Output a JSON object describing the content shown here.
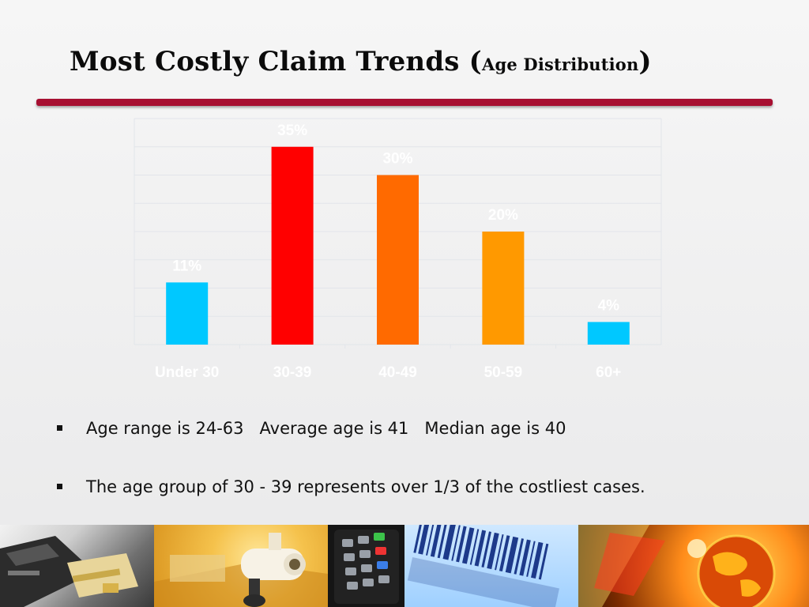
{
  "title": {
    "main": "Most Costly Claim Trends (",
    "sub": "Age Distribution",
    "close": ")"
  },
  "colors": {
    "accent_rule": "#a70f31",
    "label_text": "#ffffff",
    "grid": "#e2e5ea"
  },
  "chart_data": {
    "type": "bar",
    "categories": [
      "Under 30",
      "30-39",
      "40-49",
      "50-59",
      "60+"
    ],
    "values": [
      11,
      35,
      30,
      20,
      4
    ],
    "data_labels": [
      "11%",
      "35%",
      "30%",
      "20%",
      "4%"
    ],
    "bar_colors": [
      "#00c8ff",
      "#ff0000",
      "#ff6a00",
      "#ff9900",
      "#00c8ff"
    ],
    "unit": "%",
    "ylim": [
      0,
      40
    ],
    "grid": true,
    "legend": "none",
    "title": "",
    "xlabel": "",
    "ylabel": ""
  },
  "bullets": [
    "Age range is 24-63   Average age is 41   Median age is 40",
    "The age group of 30 - 39 represents over 1/3 of the costliest cases."
  ]
}
